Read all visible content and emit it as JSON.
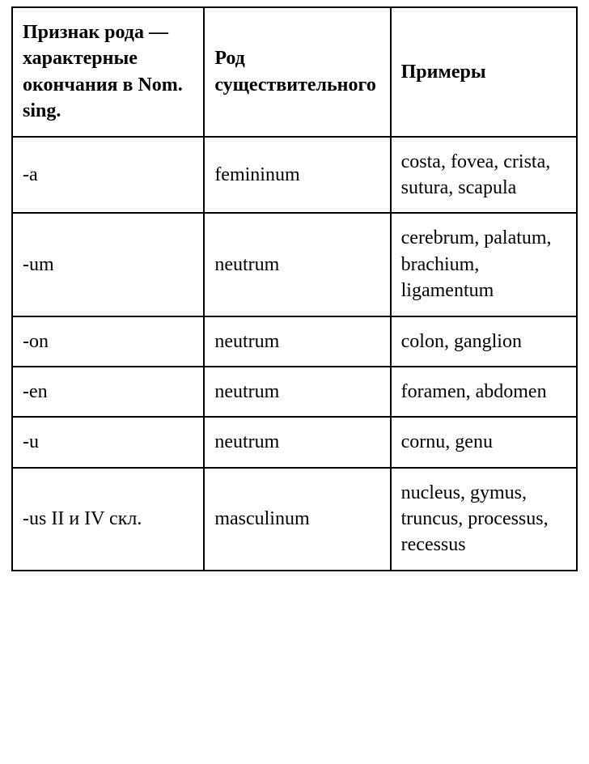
{
  "table": {
    "columns": [
      "Признак рода — характерные окончания в Nom. sing.",
      "Род существительного",
      "Примеры"
    ],
    "rows": [
      {
        "ending": "-a",
        "gender": "femininum",
        "examples": "costa, fovea, crista, sutura, scapula"
      },
      {
        "ending": "-um",
        "gender": "neutrum",
        "examples": "cerebrum, palatum, brachium, ligamentum"
      },
      {
        "ending": "-on",
        "gender": "neutrum",
        "examples": "colon, ganglion"
      },
      {
        "ending": "-en",
        "gender": "neutrum",
        "examples": "foramen, abdomen"
      },
      {
        "ending": "-u",
        "gender": "neutrum",
        "examples": "cornu, genu"
      },
      {
        "ending": "-us II и IV скл.",
        "gender": "masculinum",
        "examples": "nucleus, gymus, truncus, processus, recessus"
      }
    ],
    "border_color": "#000000",
    "background_color": "#ffffff",
    "font_family": "Times New Roman",
    "font_size": 24,
    "header_font_weight": "bold"
  }
}
